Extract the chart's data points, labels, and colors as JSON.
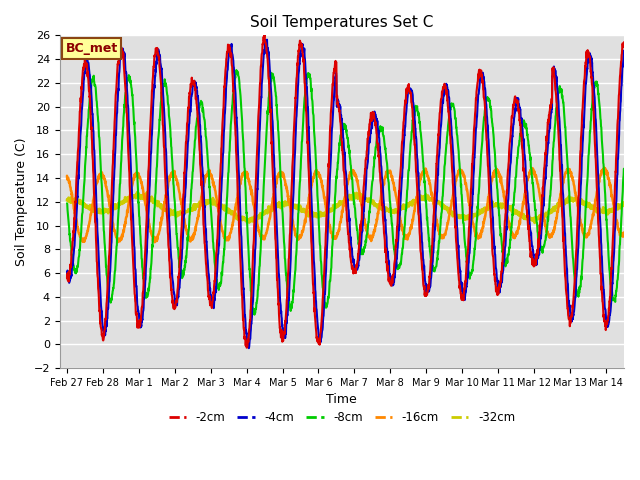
{
  "title": "Soil Temperatures Set C",
  "xlabel": "Time",
  "ylabel": "Soil Temperature (C)",
  "ylim": [
    -2,
    26
  ],
  "bg_color": "#e0e0e0",
  "fig_color": "#ffffff",
  "annotation_text": "BC_met",
  "annotation_bg": "#ffff99",
  "annotation_border": "#8B4513",
  "xtick_labels": [
    "Feb 27",
    "Feb 28",
    "Mar 1",
    "Mar 2",
    "Mar 3",
    "Mar 4",
    "Mar 5",
    "Mar 6",
    "Mar 7",
    "Mar 8",
    "Mar 9",
    "Mar 10",
    "Mar 11",
    "Mar 12",
    "Mar 13",
    "Mar 14"
  ],
  "legend_labels": [
    "-2cm",
    "-4cm",
    "-8cm",
    "-16cm",
    "-32cm"
  ],
  "line_colors": [
    "#dd0000",
    "#0000cc",
    "#00cc00",
    "#ff8800",
    "#cccc00"
  ],
  "line_widths": [
    1.5,
    1.5,
    1.5,
    1.8,
    2.0
  ]
}
